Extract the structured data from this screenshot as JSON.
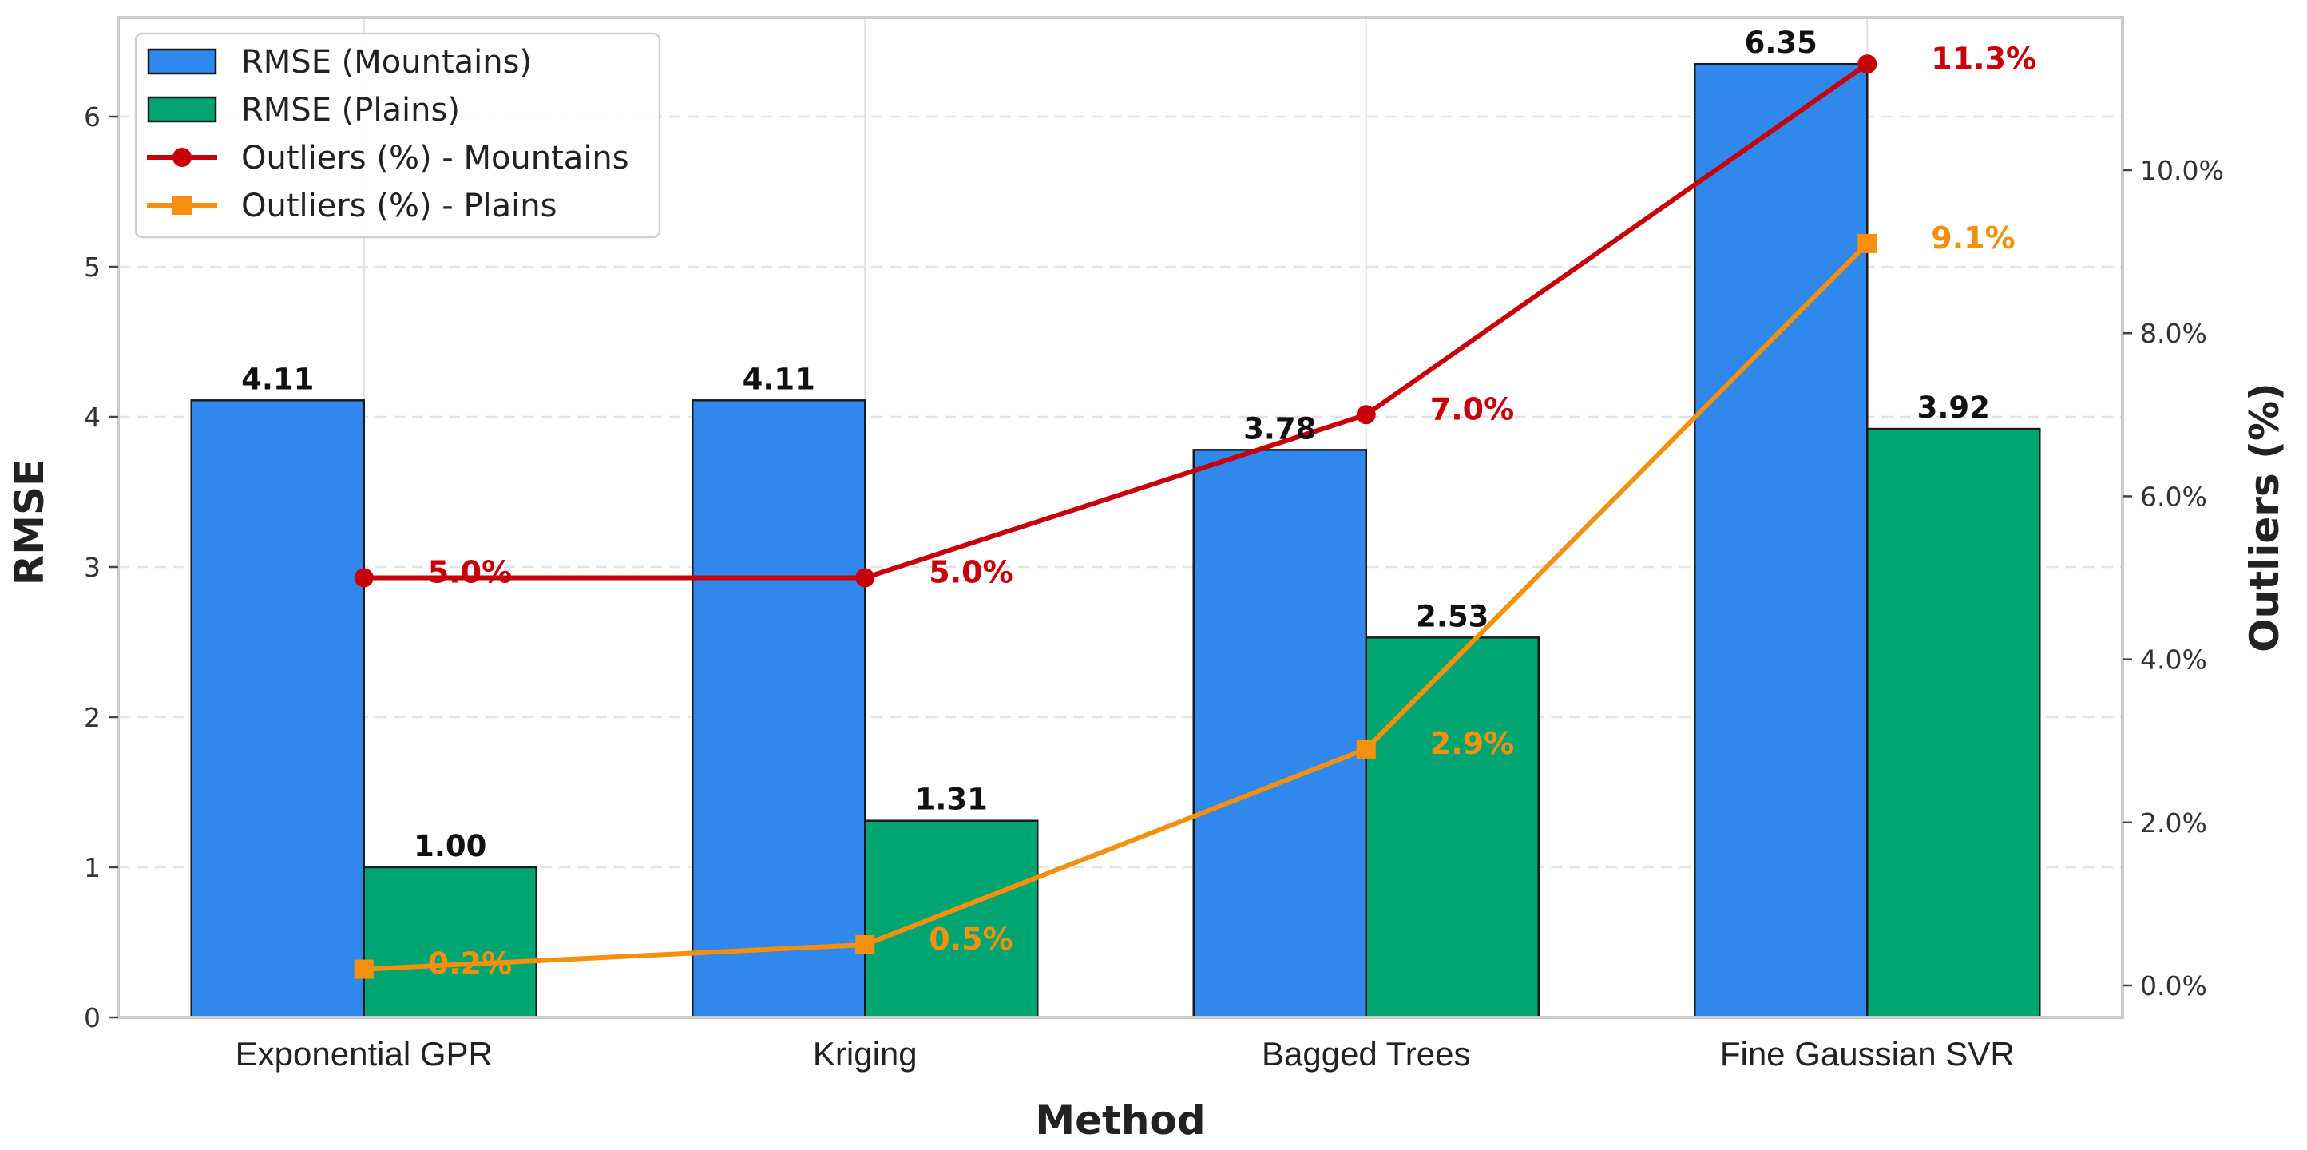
{
  "chart_data": {
    "type": "bar",
    "title": "",
    "xlabel": "Method",
    "ylabel": "RMSE",
    "y2label": "Outliers (%)",
    "categories": [
      "Exponential GPR",
      "Kriging",
      "Bagged Trees",
      "Fine Gaussian SVR"
    ],
    "ylim": [
      0,
      6.6
    ],
    "y2lim": [
      -0.35,
      12.0
    ],
    "yticks": [
      "0",
      "1",
      "2",
      "3",
      "4",
      "5",
      "6"
    ],
    "y2ticks": [
      "0.0%",
      "2.0%",
      "4.0%",
      "6.0%",
      "8.0%",
      "10.0%"
    ],
    "grid": "on",
    "legend_position": "top-left",
    "series": [
      {
        "name": "RMSE (Mountains)",
        "kind": "bar",
        "axis": "left",
        "color": "#3088ec",
        "values": [
          4.11,
          4.11,
          3.78,
          6.35
        ],
        "labels": [
          "4.11",
          "4.11",
          "3.78",
          "6.35"
        ]
      },
      {
        "name": "RMSE (Plains)",
        "kind": "bar",
        "axis": "left",
        "color": "#00a572",
        "values": [
          1.0,
          1.31,
          2.53,
          3.92
        ],
        "labels": [
          "1.00",
          "1.31",
          "2.53",
          "3.92"
        ]
      },
      {
        "name": "Outliers (%) - Mountains",
        "kind": "line",
        "axis": "right",
        "marker": "circle",
        "color": "#c8000a",
        "values": [
          5.0,
          5.0,
          7.0,
          11.3
        ],
        "labels": [
          "5.0%",
          "5.0%",
          "7.0%",
          "11.3%"
        ]
      },
      {
        "name": "Outliers (%) - Plains",
        "kind": "line",
        "axis": "right",
        "marker": "square",
        "color": "#f5900f",
        "values": [
          0.2,
          0.5,
          2.9,
          9.1
        ],
        "labels": [
          "0.2%",
          "0.5%",
          "2.9%",
          "9.1%"
        ]
      }
    ]
  }
}
